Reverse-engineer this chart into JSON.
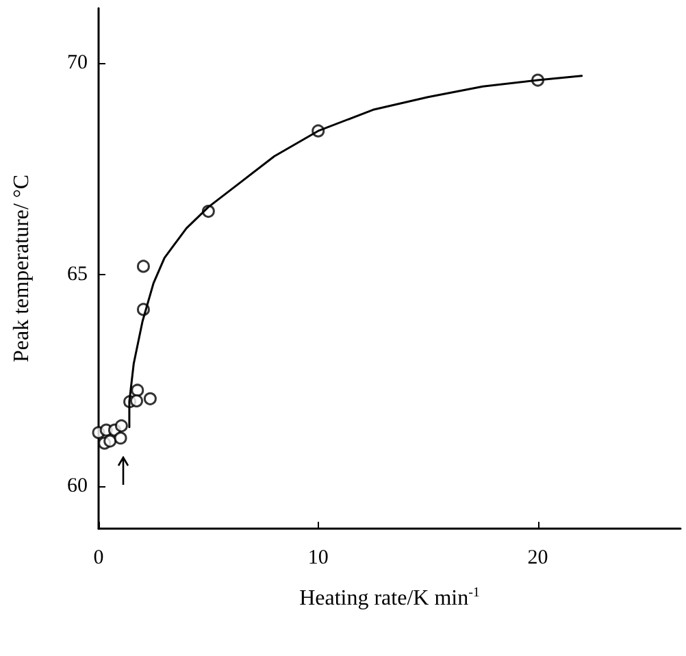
{
  "chart_data": {
    "type": "scatter",
    "xlabel": "Heating rate/K min$^{-1}$",
    "ylabel": "Peak temperature/ °C",
    "xlim": [
      0,
      26.5
    ],
    "ylim": [
      59,
      71.3
    ],
    "xticks": [
      0,
      10,
      20
    ],
    "yticks": [
      60,
      65,
      70
    ],
    "grid": false,
    "marker": "circle",
    "series": [
      {
        "color": "#000000",
        "x": [
          0.0,
          0.27,
          0.35,
          0.52,
          0.73,
          1.04,
          1.0,
          1.42,
          1.77,
          1.73,
          2.35,
          2.04,
          2.04,
          5,
          10,
          20
        ],
        "values": [
          61.27,
          61.02,
          61.33,
          61.07,
          61.33,
          61.43,
          61.14,
          62.0,
          62.27,
          62.02,
          62.07,
          64.18,
          65.2,
          66.5,
          68.4,
          69.6
        ]
      },
      {
        "type": "line",
        "color": "#000000",
        "marker": "none",
        "line_style": "solid",
        "x": [
          1.4,
          1.4,
          1.6,
          2.0,
          2.5,
          3.0,
          4.0,
          5.0,
          6.5,
          8.0,
          10.0,
          12.5,
          15.0,
          17.5,
          20.0,
          22.0
        ],
        "values": [
          61.4,
          62.0,
          62.9,
          63.9,
          64.8,
          65.4,
          66.1,
          66.6,
          67.2,
          67.8,
          68.4,
          68.9,
          69.2,
          69.45,
          69.6,
          69.7
        ]
      }
    ]
  }
}
